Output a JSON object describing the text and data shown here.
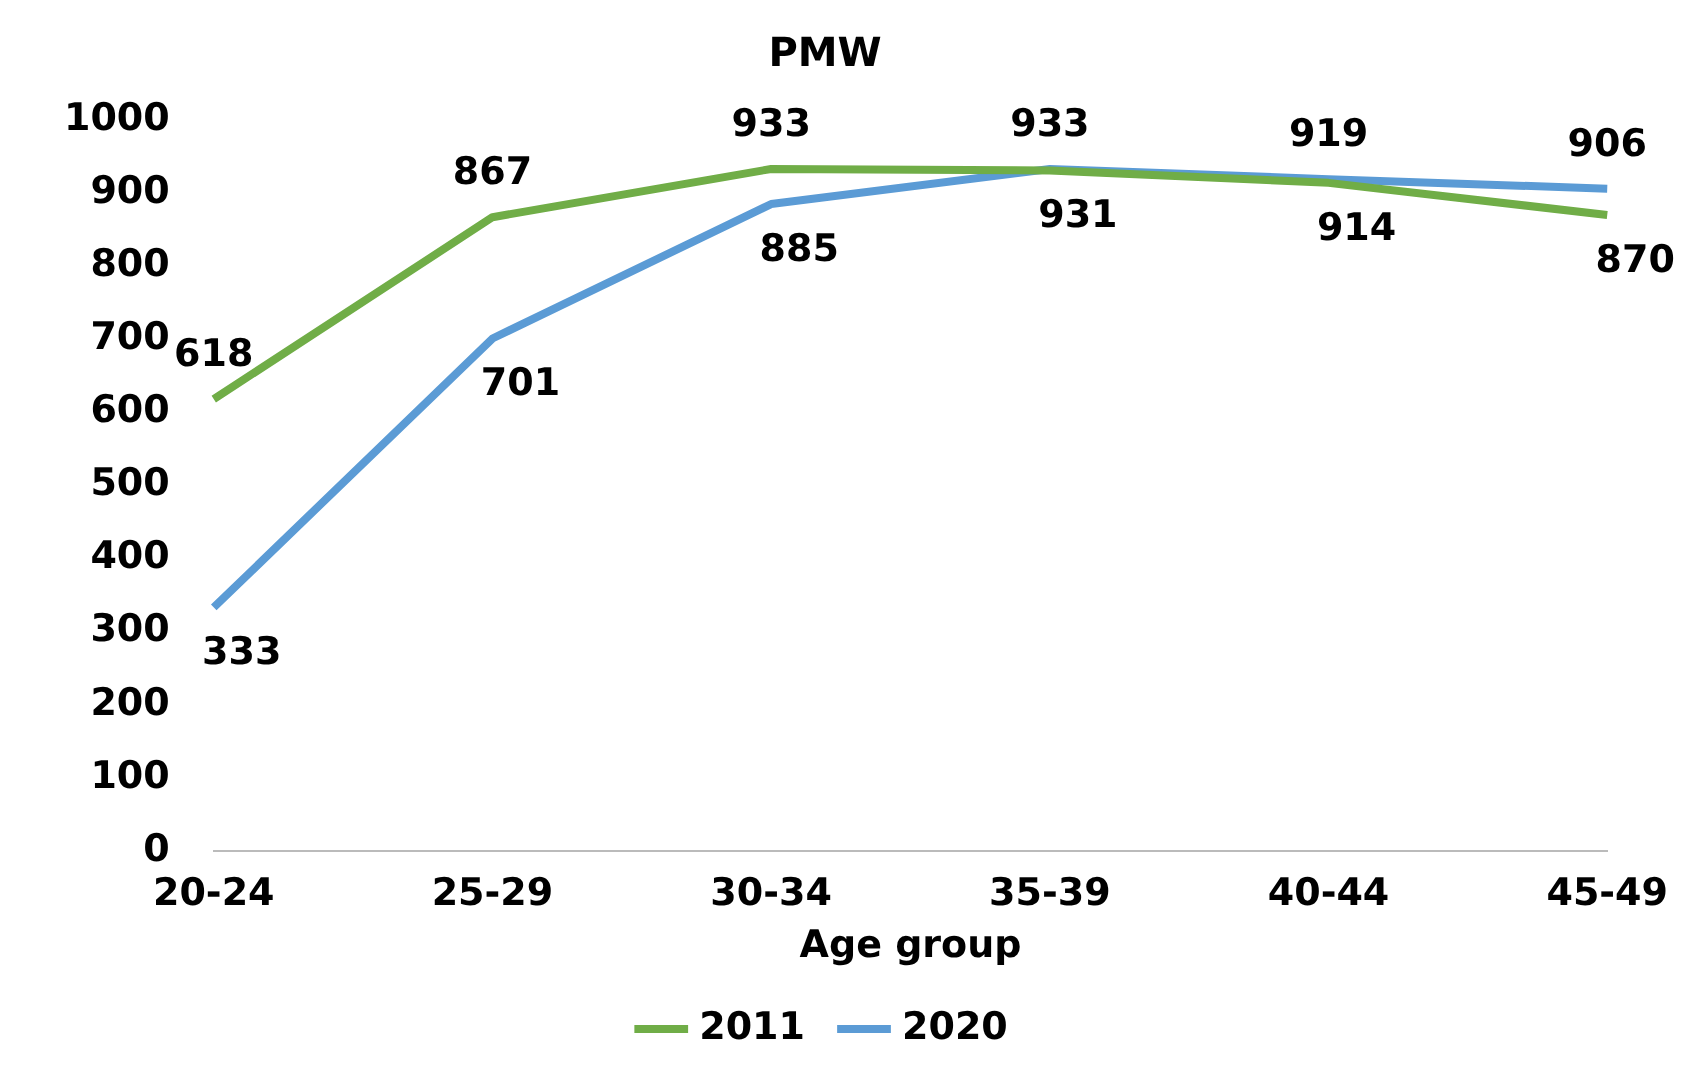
{
  "chart_data": {
    "type": "line",
    "title": "PMW",
    "xlabel": "Age group",
    "categories": [
      "20-24",
      "25-29",
      "30-34",
      "35-39",
      "40-44",
      "45-49"
    ],
    "series": [
      {
        "name": "2011",
        "color": "#70ad47",
        "values": [
          618,
          867,
          933,
          931,
          914,
          870
        ]
      },
      {
        "name": "2020",
        "color": "#5b9bd5",
        "values": [
          333,
          701,
          885,
          933,
          919,
          906
        ]
      }
    ],
    "ylim": [
      0,
      1000
    ],
    "yticks": [
      0,
      100,
      200,
      300,
      400,
      500,
      600,
      700,
      800,
      900,
      1000
    ],
    "grid": false,
    "legend": "bottom",
    "marker": "none",
    "line_style": "solid",
    "data_labels": true
  }
}
